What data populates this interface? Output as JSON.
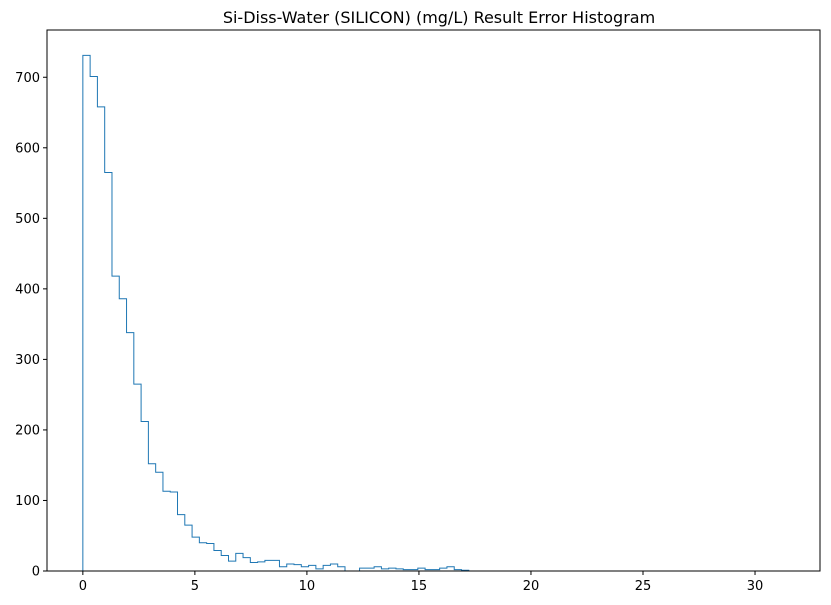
{
  "chart_data": {
    "type": "histogram",
    "title": "Si-Diss-Water (SILICON) (mg/L) Result Error Histogram",
    "xlabel": "",
    "ylabel": "",
    "xlim": [
      -1.6,
      32.9
    ],
    "ylim": [
      0,
      767
    ],
    "xticks": [
      0,
      5,
      10,
      15,
      20,
      25,
      30
    ],
    "yticks": [
      0,
      100,
      200,
      300,
      400,
      500,
      600,
      700
    ],
    "bin_width": 0.325,
    "bin_start": 0,
    "counts": [
      731,
      701,
      658,
      565,
      418,
      386,
      338,
      265,
      212,
      152,
      140,
      113,
      112,
      80,
      65,
      48,
      40,
      39,
      29,
      22,
      14,
      25,
      19,
      12,
      13,
      15,
      15,
      6,
      10,
      9,
      6,
      8,
      3,
      8,
      10,
      6,
      0,
      0,
      4,
      4,
      6,
      3,
      4,
      3,
      2,
      2,
      4,
      2,
      2,
      4,
      6,
      2,
      1,
      0,
      0,
      0,
      0,
      0,
      0,
      0,
      0,
      0,
      0,
      0,
      0,
      0,
      0,
      0,
      0,
      0,
      0,
      0,
      0,
      0,
      0,
      0,
      0,
      0,
      0,
      0,
      0,
      0,
      0,
      0,
      0,
      0,
      0,
      0,
      0,
      0,
      0,
      0,
      0,
      0,
      0,
      0,
      0
    ],
    "line_color": "#1f77b4",
    "grid": false
  }
}
